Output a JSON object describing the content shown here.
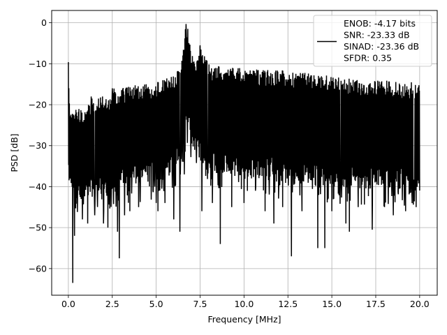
{
  "chart_data": {
    "type": "line",
    "title": "",
    "xlabel": "Frequency [MHz]",
    "ylabel": "PSD [dB]",
    "xlim": [
      -0.95,
      21.0
    ],
    "ylim": [
      -66.5,
      3.0
    ],
    "xticks": [
      0.0,
      2.5,
      5.0,
      7.5,
      10.0,
      12.5,
      15.0,
      17.5,
      20.0
    ],
    "xtick_labels": [
      "0.0",
      "2.5",
      "5.0",
      "7.5",
      "10.0",
      "12.5",
      "15.0",
      "17.5",
      "20.0"
    ],
    "yticks": [
      0,
      -10,
      -20,
      -30,
      -40,
      -50,
      -60
    ],
    "ytick_labels": [
      "0",
      "−10",
      "−20",
      "−30",
      "−40",
      "−50",
      "−60"
    ],
    "grid": true,
    "legend_position": "top-right",
    "series": [
      {
        "name": "ENOB: -4.17 bits\nSNR: -23.33 dB\nSINAD: -23.36 dB\nSFDR: 0.35",
        "color": "#000000",
        "x_start": 0.0,
        "x_end": 20.0,
        "upper_envelope": [
          [
            0.0,
            -9.6
          ],
          [
            0.05,
            -16
          ],
          [
            0.1,
            -22
          ],
          [
            0.2,
            -22
          ],
          [
            0.3,
            -20.5
          ],
          [
            0.6,
            -21
          ],
          [
            1.0,
            -21
          ],
          [
            1.3,
            -18
          ],
          [
            2.0,
            -17.5
          ],
          [
            2.3,
            -17.5
          ],
          [
            2.5,
            -16
          ],
          [
            3.0,
            -16
          ],
          [
            4.0,
            -15
          ],
          [
            5.0,
            -14.5
          ],
          [
            5.5,
            -13.5
          ],
          [
            6.0,
            -13
          ],
          [
            6.3,
            -11
          ],
          [
            6.5,
            -6
          ],
          [
            6.7,
            -0.5
          ],
          [
            6.8,
            -1.5
          ],
          [
            7.0,
            -6
          ],
          [
            7.2,
            -10.5
          ],
          [
            7.5,
            -5.5
          ],
          [
            7.7,
            -6.5
          ],
          [
            8.0,
            -10
          ],
          [
            9.0,
            -11
          ],
          [
            10.0,
            -11
          ],
          [
            11.0,
            -11.5
          ],
          [
            12.0,
            -11.5
          ],
          [
            13.0,
            -12
          ],
          [
            14.0,
            -12.5
          ],
          [
            15.0,
            -13
          ],
          [
            16.0,
            -13.5
          ],
          [
            17.0,
            -14
          ],
          [
            18.0,
            -14
          ],
          [
            19.0,
            -14.5
          ],
          [
            20.0,
            -14.5
          ]
        ],
        "lower_envelope": [
          [
            0.0,
            -38
          ],
          [
            0.2,
            -45
          ],
          [
            0.5,
            -44
          ],
          [
            1.0,
            -43
          ],
          [
            2.0,
            -42
          ],
          [
            3.0,
            -41
          ],
          [
            4.0,
            -40
          ],
          [
            5.0,
            -39
          ],
          [
            6.0,
            -37
          ],
          [
            6.5,
            -33
          ],
          [
            6.8,
            -25
          ],
          [
            7.0,
            -30
          ],
          [
            7.5,
            -34
          ],
          [
            8.0,
            -36
          ],
          [
            9.0,
            -37
          ],
          [
            10.0,
            -38
          ],
          [
            11.0,
            -38
          ],
          [
            12.0,
            -39
          ],
          [
            13.0,
            -39.5
          ],
          [
            14.0,
            -40
          ],
          [
            15.0,
            -40
          ],
          [
            16.0,
            -40.5
          ],
          [
            17.0,
            -41
          ],
          [
            18.0,
            -41
          ],
          [
            19.0,
            -41.5
          ],
          [
            20.0,
            -41.5
          ]
        ],
        "deep_dips": [
          [
            0.25,
            -63.5
          ],
          [
            0.35,
            -52
          ],
          [
            0.5,
            -50
          ],
          [
            0.8,
            -48
          ],
          [
            1.1,
            -49
          ],
          [
            1.5,
            -47
          ],
          [
            2.0,
            -49
          ],
          [
            2.25,
            -50
          ],
          [
            2.8,
            -51
          ],
          [
            2.9,
            -57.5
          ],
          [
            3.2,
            -47
          ],
          [
            3.5,
            -46
          ],
          [
            4.0,
            -45
          ],
          [
            5.0,
            -44
          ],
          [
            5.1,
            -46
          ],
          [
            5.5,
            -44
          ],
          [
            6.0,
            -48
          ],
          [
            6.35,
            -51
          ],
          [
            6.6,
            -37
          ],
          [
            7.6,
            -46
          ],
          [
            8.2,
            -44
          ],
          [
            8.65,
            -54
          ],
          [
            9.3,
            -45
          ],
          [
            10.0,
            -44
          ],
          [
            11.2,
            -46
          ],
          [
            11.7,
            -49
          ],
          [
            12.2,
            -45
          ],
          [
            12.7,
            -57
          ],
          [
            13.3,
            -46
          ],
          [
            14.2,
            -55
          ],
          [
            14.6,
            -55
          ],
          [
            15.0,
            -46
          ],
          [
            15.8,
            -49
          ],
          [
            16.0,
            -51
          ],
          [
            16.5,
            -45
          ],
          [
            17.3,
            -50.5
          ],
          [
            18.0,
            -45
          ],
          [
            18.5,
            -47
          ],
          [
            19.2,
            -46
          ],
          [
            19.8,
            -45
          ]
        ],
        "spikes_up": [
          [
            0.5,
            -25
          ],
          [
            1.3,
            -18
          ],
          [
            2.5,
            -16
          ],
          [
            6.7,
            -0.3
          ],
          [
            6.8,
            -1.5
          ],
          [
            7.5,
            -5.5
          ]
        ]
      }
    ]
  }
}
